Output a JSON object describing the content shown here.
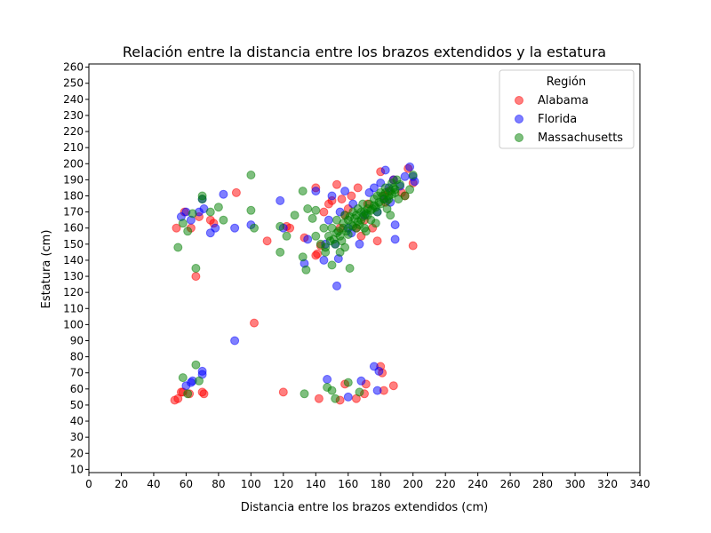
{
  "chart_data": {
    "type": "scatter",
    "title": "Relación entre la distancia entre los brazos extendidos y la estatura",
    "xlabel": "Distancia entre los brazos extendidos (cm)",
    "ylabel": "Estatura (cm)",
    "xlim": [
      0,
      340
    ],
    "ylim": [
      8,
      262
    ],
    "xticks": [
      0,
      20,
      40,
      60,
      80,
      100,
      120,
      140,
      160,
      180,
      200,
      220,
      240,
      260,
      280,
      300,
      320,
      340
    ],
    "yticks": [
      10,
      20,
      30,
      40,
      50,
      60,
      70,
      80,
      90,
      100,
      110,
      120,
      130,
      140,
      150,
      160,
      170,
      180,
      190,
      200,
      210,
      220,
      230,
      240,
      250,
      260
    ],
    "grid": false,
    "legend": {
      "title": "Región",
      "placement": "top-right"
    },
    "series": [
      {
        "name": "Alabama",
        "color": "#ff0000",
        "points": [
          [
            53,
            53
          ],
          [
            55,
            54
          ],
          [
            57,
            58
          ],
          [
            58,
            58
          ],
          [
            62,
            57
          ],
          [
            70,
            58
          ],
          [
            71,
            57
          ],
          [
            120,
            58
          ],
          [
            142,
            54
          ],
          [
            155,
            53
          ],
          [
            158,
            63
          ],
          [
            165,
            54
          ],
          [
            170,
            57
          ],
          [
            171,
            63
          ],
          [
            180,
            74
          ],
          [
            181,
            70
          ],
          [
            182,
            59
          ],
          [
            188,
            62
          ],
          [
            54,
            160
          ],
          [
            59,
            170
          ],
          [
            63,
            160
          ],
          [
            66,
            130
          ],
          [
            68,
            167
          ],
          [
            75,
            165
          ],
          [
            77,
            163
          ],
          [
            91,
            182
          ],
          [
            102,
            101
          ],
          [
            110,
            152
          ],
          [
            122,
            161
          ],
          [
            124,
            160
          ],
          [
            133,
            154
          ],
          [
            140,
            185
          ],
          [
            140,
            143
          ],
          [
            141,
            144
          ],
          [
            145,
            170
          ],
          [
            148,
            175
          ],
          [
            150,
            177
          ],
          [
            153,
            187
          ],
          [
            156,
            178
          ],
          [
            158,
            168
          ],
          [
            160,
            172
          ],
          [
            162,
            180
          ],
          [
            165,
            160
          ],
          [
            166,
            185
          ],
          [
            170,
            165
          ],
          [
            172,
            175
          ],
          [
            175,
            160
          ],
          [
            178,
            152
          ],
          [
            180,
            195
          ],
          [
            182,
            180
          ],
          [
            185,
            183
          ],
          [
            188,
            190
          ],
          [
            193,
            182
          ],
          [
            195,
            180
          ],
          [
            197,
            197
          ],
          [
            200,
            149
          ],
          [
            200,
            188
          ],
          [
            143,
            149
          ],
          [
            155,
            160
          ],
          [
            168,
            155
          ],
          [
            183,
            176
          ]
        ]
      },
      {
        "name": "Florida",
        "color": "#0000ff",
        "points": [
          [
            60,
            62
          ],
          [
            63,
            64
          ],
          [
            64,
            65
          ],
          [
            70,
            71
          ],
          [
            70,
            69
          ],
          [
            147,
            66
          ],
          [
            160,
            55
          ],
          [
            168,
            65
          ],
          [
            176,
            74
          ],
          [
            178,
            59
          ],
          [
            179,
            71
          ],
          [
            57,
            167
          ],
          [
            60,
            170
          ],
          [
            63,
            165
          ],
          [
            68,
            170
          ],
          [
            70,
            178
          ],
          [
            71,
            172
          ],
          [
            75,
            157
          ],
          [
            78,
            160
          ],
          [
            83,
            181
          ],
          [
            90,
            160
          ],
          [
            90,
            90
          ],
          [
            100,
            162
          ],
          [
            118,
            177
          ],
          [
            120,
            160
          ],
          [
            133,
            138
          ],
          [
            135,
            153
          ],
          [
            140,
            183
          ],
          [
            145,
            140
          ],
          [
            148,
            165
          ],
          [
            150,
            180
          ],
          [
            152,
            150
          ],
          [
            153,
            124
          ],
          [
            154,
            141
          ],
          [
            155,
            170
          ],
          [
            158,
            183
          ],
          [
            160,
            160
          ],
          [
            163,
            175
          ],
          [
            167,
            150
          ],
          [
            170,
            168
          ],
          [
            173,
            182
          ],
          [
            176,
            185
          ],
          [
            178,
            170
          ],
          [
            180,
            188
          ],
          [
            182,
            178
          ],
          [
            183,
            196
          ],
          [
            185,
            185
          ],
          [
            188,
            190
          ],
          [
            189,
            153
          ],
          [
            189,
            162
          ],
          [
            192,
            186
          ],
          [
            195,
            192
          ],
          [
            198,
            198
          ],
          [
            200,
            192
          ],
          [
            201,
            189
          ],
          [
            186,
            176
          ],
          [
            162,
            157
          ],
          [
            146,
            150
          ]
        ]
      },
      {
        "name": "Massachusetts",
        "color": "#008000",
        "points": [
          [
            58,
            67
          ],
          [
            61,
            57
          ],
          [
            66,
            75
          ],
          [
            68,
            65
          ],
          [
            133,
            57
          ],
          [
            147,
            61
          ],
          [
            150,
            59
          ],
          [
            152,
            54
          ],
          [
            160,
            64
          ],
          [
            167,
            58
          ],
          [
            55,
            148
          ],
          [
            58,
            163
          ],
          [
            61,
            158
          ],
          [
            64,
            169
          ],
          [
            66,
            135
          ],
          [
            70,
            178
          ],
          [
            70,
            180
          ],
          [
            75,
            170
          ],
          [
            80,
            173
          ],
          [
            83,
            165
          ],
          [
            100,
            193
          ],
          [
            100,
            171
          ],
          [
            102,
            160
          ],
          [
            118,
            145
          ],
          [
            118,
            161
          ],
          [
            122,
            155
          ],
          [
            127,
            168
          ],
          [
            132,
            183
          ],
          [
            132,
            142
          ],
          [
            134,
            134
          ],
          [
            135,
            172
          ],
          [
            138,
            166
          ],
          [
            140,
            155
          ],
          [
            140,
            171
          ],
          [
            143,
            150
          ],
          [
            145,
            160
          ],
          [
            146,
            145
          ],
          [
            148,
            155
          ],
          [
            150,
            137
          ],
          [
            150,
            160
          ],
          [
            152,
            150
          ],
          [
            153,
            165
          ],
          [
            155,
            155
          ],
          [
            155,
            145
          ],
          [
            157,
            160
          ],
          [
            158,
            148
          ],
          [
            158,
            168
          ],
          [
            160,
            156
          ],
          [
            160,
            165
          ],
          [
            161,
            135
          ],
          [
            162,
            162
          ],
          [
            163,
            170
          ],
          [
            165,
            160
          ],
          [
            165,
            168
          ],
          [
            166,
            172
          ],
          [
            168,
            165
          ],
          [
            169,
            175
          ],
          [
            170,
            160
          ],
          [
            170,
            170
          ],
          [
            172,
            168
          ],
          [
            173,
            175
          ],
          [
            175,
            172
          ],
          [
            176,
            178
          ],
          [
            178,
            170
          ],
          [
            178,
            180
          ],
          [
            180,
            175
          ],
          [
            180,
            182
          ],
          [
            182,
            178
          ],
          [
            183,
            185
          ],
          [
            184,
            172
          ],
          [
            185,
            180
          ],
          [
            186,
            183
          ],
          [
            187,
            188
          ],
          [
            188,
            185
          ],
          [
            190,
            190
          ],
          [
            192,
            187
          ],
          [
            195,
            180
          ],
          [
            198,
            184
          ],
          [
            200,
            193
          ],
          [
            186,
            168
          ],
          [
            189,
            182
          ],
          [
            191,
            178
          ],
          [
            174,
            165
          ],
          [
            167,
            162
          ],
          [
            171,
            158
          ],
          [
            177,
            163
          ],
          [
            154,
            158
          ],
          [
            156,
            152
          ],
          [
            159,
            158
          ],
          [
            164,
            166
          ],
          [
            168,
            170
          ],
          [
            172,
            172
          ],
          [
            176,
            174
          ],
          [
            179,
            176
          ],
          [
            181,
            180
          ],
          [
            183,
            182
          ],
          [
            185,
            178
          ],
          [
            187,
            181
          ],
          [
            189,
            184
          ],
          [
            151,
            153
          ],
          [
            153,
            157
          ],
          [
            157,
            163
          ],
          [
            161,
            167
          ],
          [
            163,
            161
          ],
          [
            166,
            164
          ],
          [
            169,
            167
          ],
          [
            171,
            169
          ],
          [
            174,
            171
          ],
          [
            177,
            173
          ],
          [
            184,
            177
          ],
          [
            146,
            148
          ],
          [
            149,
            152
          ]
        ]
      }
    ]
  }
}
